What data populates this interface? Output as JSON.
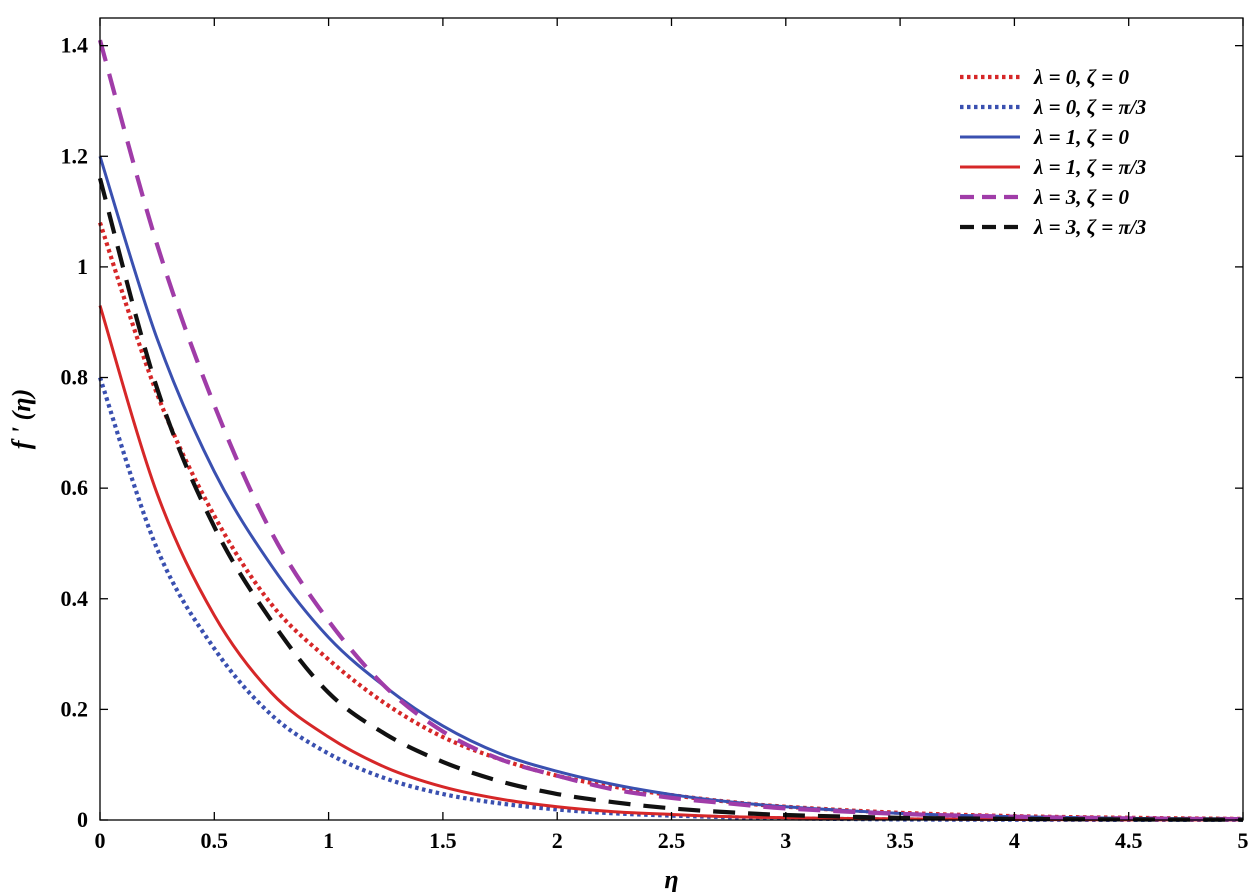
{
  "chart_data": {
    "type": "line",
    "xlabel": "η",
    "ylabel": "f ' (η)",
    "xlim": [
      0,
      5
    ],
    "ylim": [
      0,
      1.45
    ],
    "xticks": [
      0,
      0.5,
      1,
      1.5,
      2,
      2.5,
      3,
      3.5,
      4,
      4.5,
      5
    ],
    "xtick_labels": [
      "0",
      "0.5",
      "1",
      "1.5",
      "2",
      "2.5",
      "3",
      "3.5",
      "4",
      "4.5",
      "5"
    ],
    "yticks": [
      0,
      0.2,
      0.4,
      0.6,
      0.8,
      1.0,
      1.2,
      1.4
    ],
    "ytick_labels": [
      "0",
      "0.2",
      "0.4",
      "0.6",
      "0.8",
      "1",
      "1.2",
      "1.4"
    ],
    "grid": false,
    "legend_position": "top-right",
    "x": [
      0,
      0.25,
      0.5,
      0.75,
      1,
      1.25,
      1.5,
      1.75,
      2,
      2.25,
      2.5,
      2.75,
      3,
      3.5,
      4,
      4.5,
      5
    ],
    "series": [
      {
        "name": "λ = 0, ζ = 0",
        "color": "#d62728",
        "style": "dotted",
        "values": [
          1.08,
          0.77,
          0.55,
          0.39,
          0.29,
          0.21,
          0.15,
          0.11,
          0.08,
          0.06,
          0.045,
          0.033,
          0.024,
          0.013,
          0.007,
          0.004,
          0.002
        ]
      },
      {
        "name": "λ = 0, ζ = π/3",
        "color": "#3a50b0",
        "style": "dotted",
        "values": [
          0.8,
          0.49,
          0.31,
          0.19,
          0.12,
          0.075,
          0.047,
          0.03,
          0.019,
          0.012,
          0.008,
          0.005,
          0.003,
          0.001,
          0.0005,
          0.0002,
          0.0001
        ]
      },
      {
        "name": "λ = 1, ζ = 0",
        "color": "#3a50b0",
        "style": "solid",
        "values": [
          1.2,
          0.87,
          0.63,
          0.46,
          0.33,
          0.24,
          0.17,
          0.12,
          0.088,
          0.064,
          0.046,
          0.033,
          0.024,
          0.012,
          0.006,
          0.003,
          0.002
        ]
      },
      {
        "name": "λ = 1, ζ = π/3",
        "color": "#d62728",
        "style": "solid",
        "values": [
          0.93,
          0.59,
          0.37,
          0.23,
          0.15,
          0.095,
          0.06,
          0.038,
          0.024,
          0.015,
          0.01,
          0.006,
          0.004,
          0.002,
          0.001,
          0.0003,
          0.0001
        ]
      },
      {
        "name": "λ = 3, ζ = 0",
        "color": "#a03ca8",
        "style": "dashed",
        "values": [
          1.41,
          1.04,
          0.75,
          0.52,
          0.36,
          0.24,
          0.16,
          0.11,
          0.08,
          0.055,
          0.04,
          0.03,
          0.021,
          0.011,
          0.006,
          0.003,
          0.0015
        ]
      },
      {
        "name": "λ = 3, ζ = π/3",
        "color": "#111111",
        "style": "dashed",
        "values": [
          1.16,
          0.78,
          0.53,
          0.36,
          0.23,
          0.155,
          0.105,
          0.07,
          0.047,
          0.032,
          0.021,
          0.014,
          0.009,
          0.004,
          0.002,
          0.001,
          0.0005
        ]
      }
    ]
  }
}
